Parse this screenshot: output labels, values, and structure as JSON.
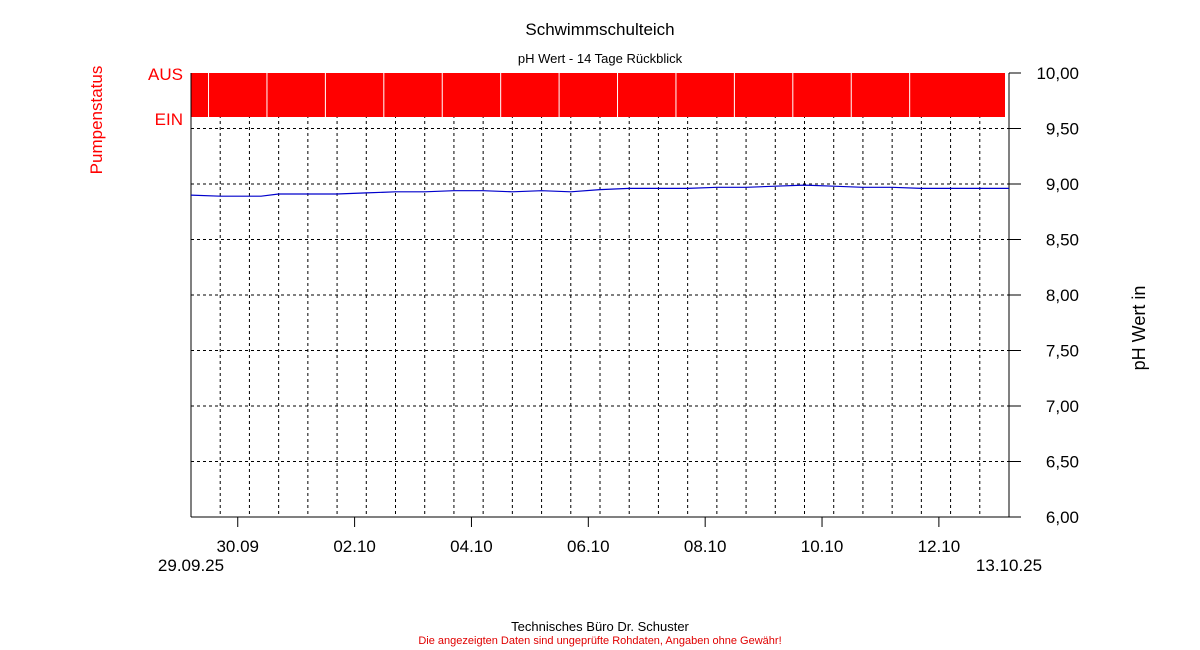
{
  "chart_data": {
    "type": "line",
    "title": "Schwimmschulteich",
    "subtitle": "pH Wert - 14 Tage Rückblick",
    "ylabel": "pH Wert in",
    "status_label": "Pumpenstatus",
    "status_levels": [
      "AUS",
      "EIN"
    ],
    "ylim": [
      6.0,
      10.0
    ],
    "y_ticks": [
      "6,00",
      "6,50",
      "7,00",
      "7,50",
      "8,00",
      "8,50",
      "9,00",
      "9,50",
      "10,00"
    ],
    "x_ticks": [
      "30.09",
      "02.10",
      "04.10",
      "06.10",
      "08.10",
      "10.10",
      "12.10"
    ],
    "x_start_label": "29.09.25",
    "x_end_label": "13.10.25",
    "grid": true,
    "colors": {
      "series": "#0000cc",
      "status": "#ff0000",
      "grid": "#000000"
    },
    "series": [
      {
        "x": [
          0,
          0.5,
          1,
          1.2,
          1.5,
          2,
          2.5,
          3,
          3.5,
          4,
          4.5,
          5,
          5.5,
          6,
          6.5,
          7,
          7.5,
          8,
          8.5,
          9,
          9.5,
          10,
          10.5,
          11,
          11.5,
          12,
          12.5,
          13,
          13.5,
          14
        ],
        "values": [
          8.9,
          8.89,
          8.89,
          8.89,
          8.91,
          8.91,
          8.91,
          8.92,
          8.93,
          8.93,
          8.94,
          8.94,
          8.93,
          8.94,
          8.93,
          8.95,
          8.96,
          8.96,
          8.96,
          8.97,
          8.97,
          8.98,
          8.99,
          8.98,
          8.97,
          8.97,
          8.96,
          8.96,
          8.96,
          8.96
        ]
      }
    ],
    "status_periods": [
      {
        "state": "AUS",
        "from": 0.0,
        "to": 14.0
      }
    ]
  },
  "footer": {
    "company": "Technisches Büro Dr. Schuster",
    "disclaimer": "Die angezeigten Daten sind ungeprüfte Rohdaten, Angaben ohne Gewähr!"
  }
}
